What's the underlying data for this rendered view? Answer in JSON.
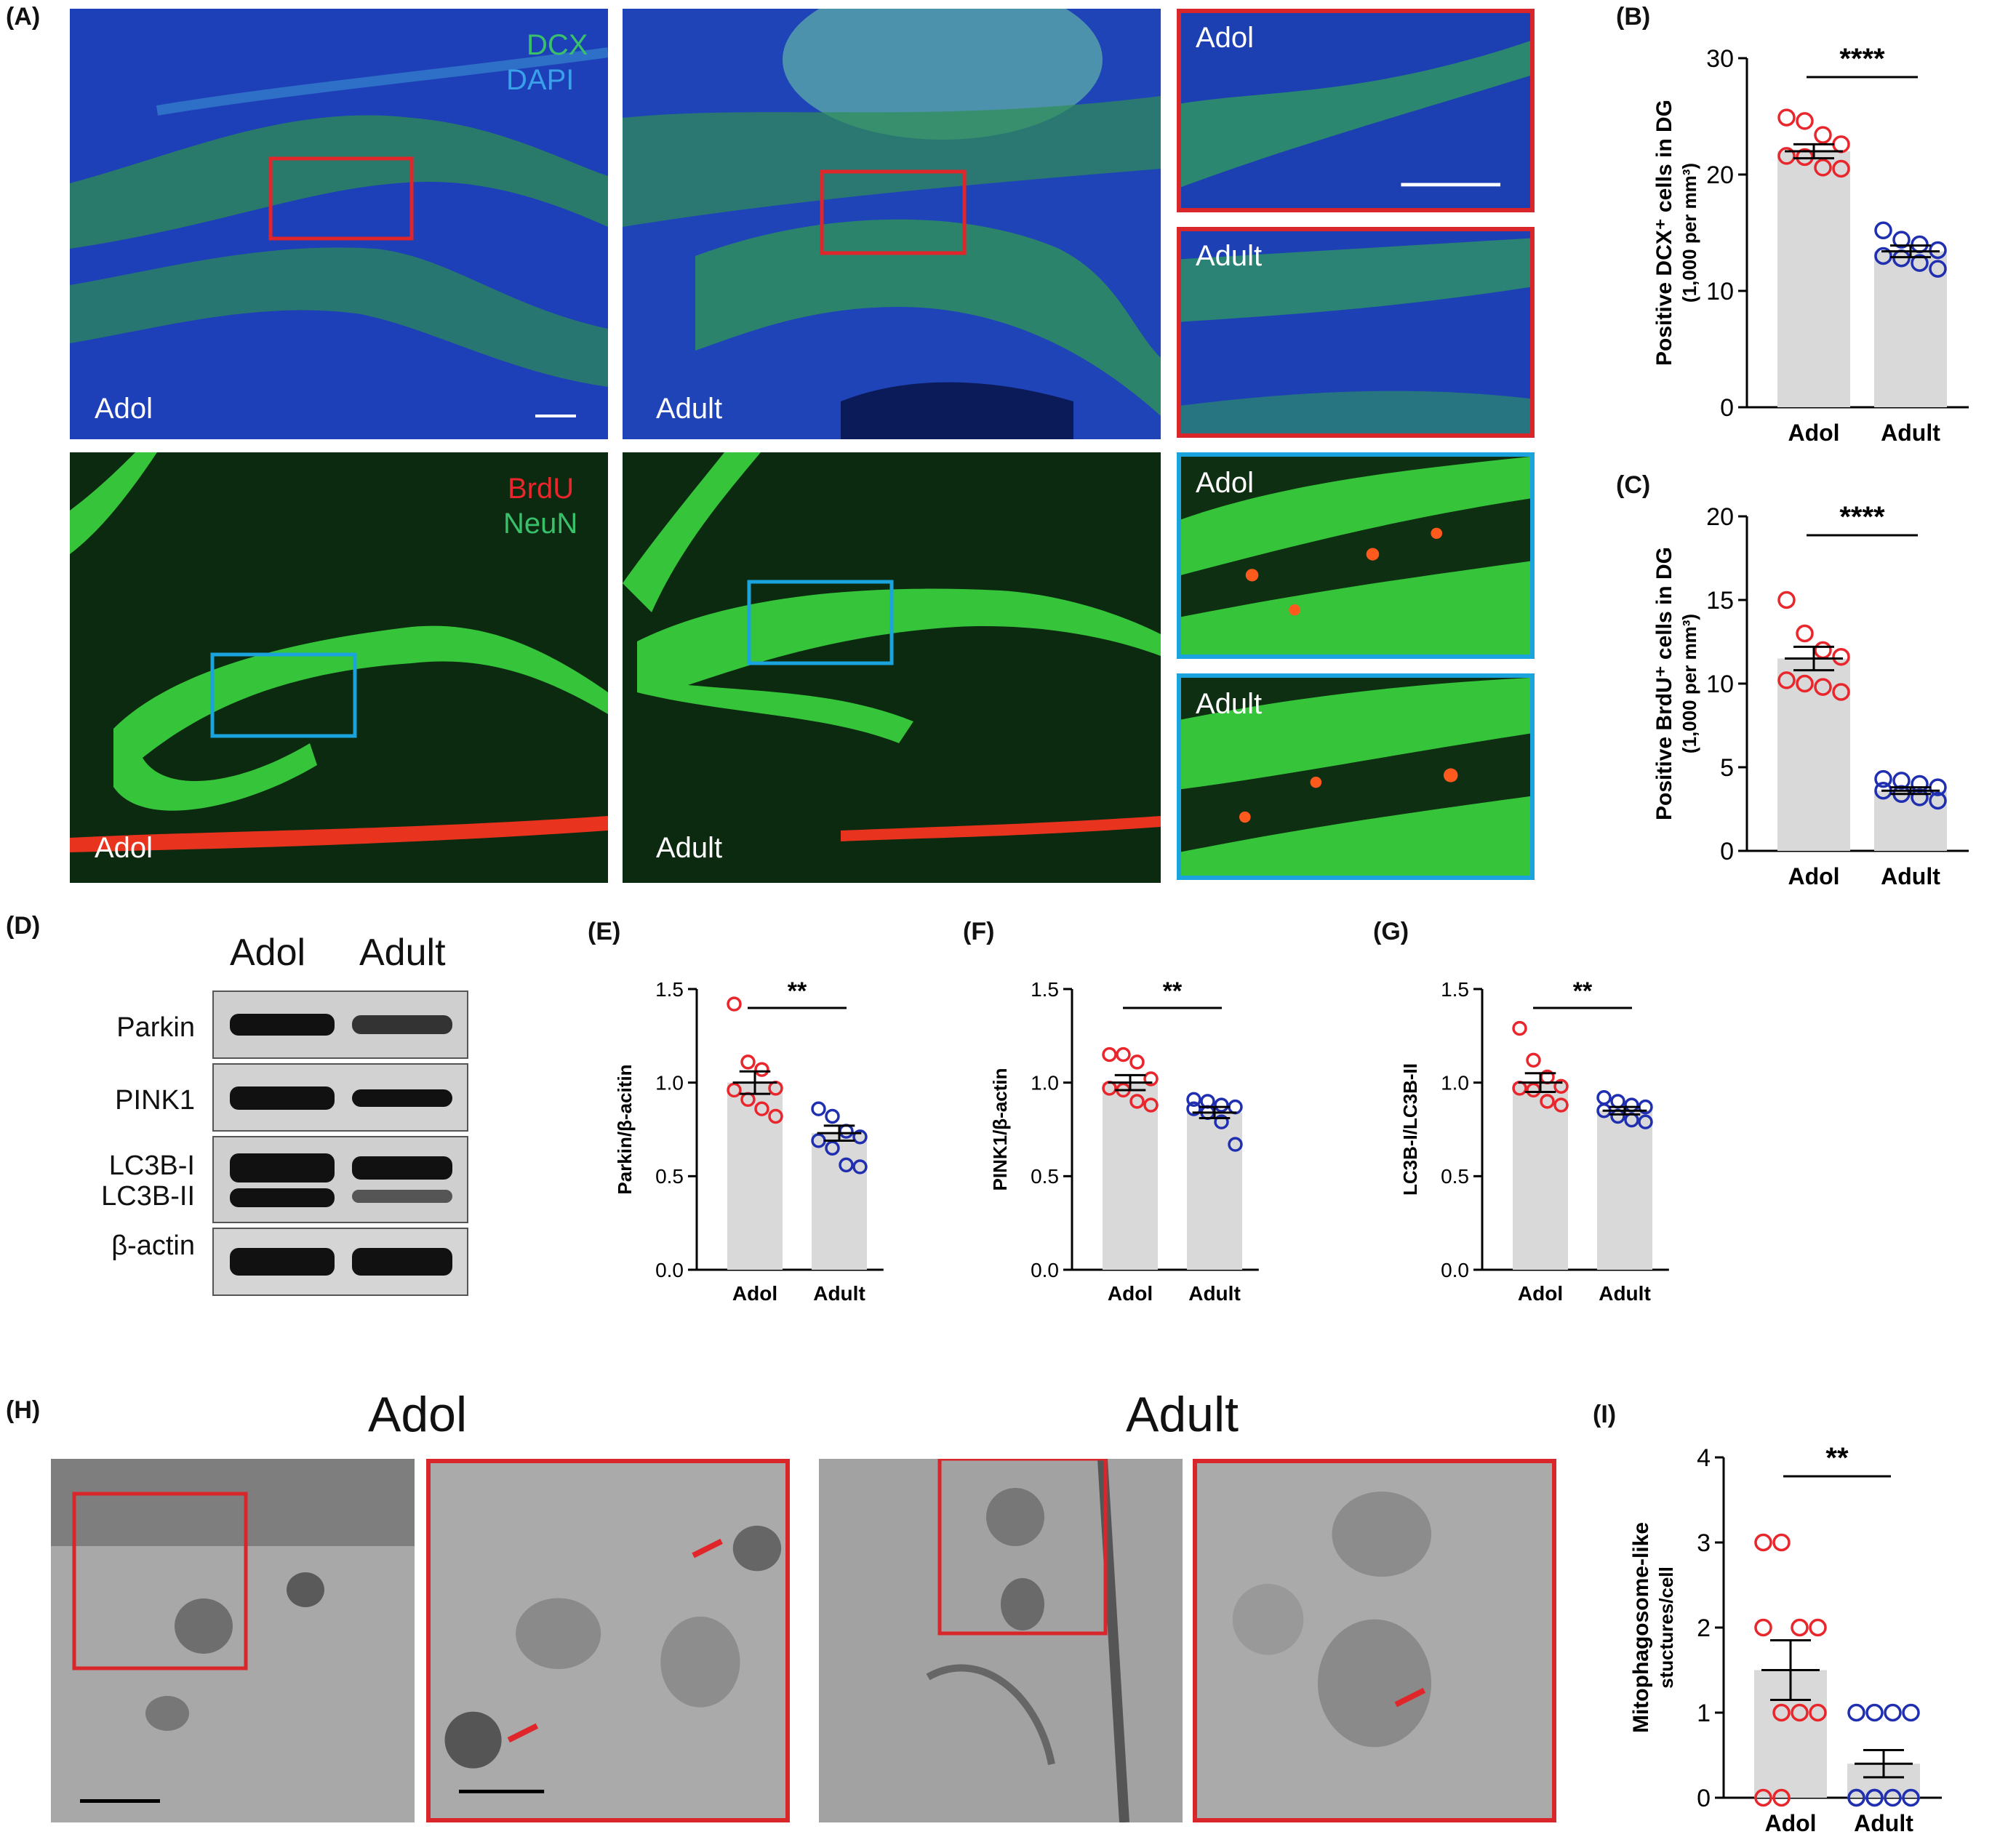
{
  "panel_labels": {
    "A": "(A)",
    "B": "(B)",
    "C": "(C)",
    "D": "(D)",
    "E": "(E)",
    "F": "(F)",
    "G": "(G)",
    "H": "(H)",
    "I": "(I)"
  },
  "panel_a": {
    "top_stain_1": "DCX",
    "top_stain_2": "DAPI",
    "bottom_stain_1": "BrdU",
    "bottom_stain_2": "NeuN",
    "img_top_left": "Adol",
    "img_top_mid": "Adult",
    "img_top_zoom1": "Adol",
    "img_top_zoom2": "Adult",
    "img_bot_left": "Adol",
    "img_bot_mid": "Adult",
    "img_bot_zoom1": "Adol",
    "img_bot_zoom2": "Adult"
  },
  "panel_d": {
    "col_adol": "Adol",
    "col_adult": "Adult",
    "row_parkin": "Parkin",
    "row_pink1": "PINK1",
    "row_lc3b_i": "LC3B-I",
    "row_lc3b_ii": "LC3B-II",
    "row_actin": "β-actin"
  },
  "panel_h": {
    "title_adol": "Adol",
    "title_adult": "Adult"
  },
  "colors": {
    "adol_points": "#e8262b",
    "adult_points": "#1f2fb0",
    "bar": "#d9d9d9",
    "zoom_frame_red": "#d9262b",
    "zoom_frame_blue": "#1aa3dc"
  },
  "chart_data": [
    {
      "id": "B",
      "type": "bar",
      "categories": [
        "Adol",
        "Adult"
      ],
      "values": [
        22.0,
        13.4
      ],
      "sem": [
        0.6,
        0.5
      ],
      "points": [
        [
          24.9,
          24.6,
          23.4,
          22.6,
          21.6,
          21.5,
          20.6,
          20.5
        ],
        [
          15.2,
          14.4,
          14.0,
          13.5,
          13.0,
          12.8,
          12.4,
          11.9
        ]
      ],
      "ylabel": "Positive DCX⁺ cells in DG",
      "ylabel2": "(1,000 per mm³)",
      "ylim": [
        0,
        30
      ],
      "yticks": [
        0,
        10,
        20,
        30
      ],
      "significance": "****"
    },
    {
      "id": "C",
      "type": "bar",
      "categories": [
        "Adol",
        "Adult"
      ],
      "values": [
        11.5,
        3.6
      ],
      "sem": [
        0.7,
        0.2
      ],
      "points": [
        [
          15.0,
          13.0,
          12.0,
          11.6,
          10.2,
          10.0,
          9.8,
          9.5
        ],
        [
          4.3,
          4.2,
          4.0,
          3.8,
          3.6,
          3.4,
          3.2,
          3.0
        ]
      ],
      "ylabel": "Positive BrdU⁺ cells in DG",
      "ylabel2": "(1,000 per mm³)",
      "ylim": [
        0,
        20
      ],
      "yticks": [
        0,
        5,
        10,
        15,
        20
      ],
      "significance": "****"
    },
    {
      "id": "E",
      "type": "bar",
      "categories": [
        "Adol",
        "Adult"
      ],
      "values": [
        1.0,
        0.73
      ],
      "sem": [
        0.06,
        0.04
      ],
      "points": [
        [
          1.42,
          1.11,
          1.07,
          0.97,
          0.96,
          0.91,
          0.86,
          0.82
        ],
        [
          0.86,
          0.82,
          0.74,
          0.71,
          0.69,
          0.65,
          0.56,
          0.55
        ]
      ],
      "ylabel": "Parkin/β-acitin",
      "ylim": [
        0,
        1.5
      ],
      "yticks": [
        "0.0",
        "0.5",
        "1.0",
        "1.5"
      ],
      "significance": "**"
    },
    {
      "id": "F",
      "type": "bar",
      "categories": [
        "Adol",
        "Adult"
      ],
      "values": [
        1.0,
        0.84
      ],
      "sem": [
        0.04,
        0.03
      ],
      "points": [
        [
          1.15,
          1.15,
          1.11,
          1.02,
          0.97,
          0.96,
          0.9,
          0.88
        ],
        [
          0.91,
          0.9,
          0.88,
          0.87,
          0.86,
          0.84,
          0.79,
          0.67
        ]
      ],
      "ylabel": "PINK1/β-actin",
      "ylim": [
        0,
        1.5
      ],
      "yticks": [
        "0.0",
        "0.5",
        "1.0",
        "1.5"
      ],
      "significance": "**"
    },
    {
      "id": "G",
      "type": "bar",
      "categories": [
        "Adol",
        "Adult"
      ],
      "values": [
        1.0,
        0.85
      ],
      "sem": [
        0.05,
        0.02
      ],
      "points": [
        [
          1.29,
          1.12,
          1.03,
          0.98,
          0.97,
          0.96,
          0.9,
          0.88
        ],
        [
          0.92,
          0.9,
          0.88,
          0.87,
          0.85,
          0.82,
          0.8,
          0.79
        ]
      ],
      "ylabel": "LC3B-I/LC3B-II",
      "ylim": [
        0,
        1.5
      ],
      "yticks": [
        "0.0",
        "0.5",
        "1.0",
        "1.5"
      ],
      "significance": "**"
    },
    {
      "id": "I",
      "type": "bar",
      "categories": [
        "Adol",
        "Adult"
      ],
      "values": [
        1.5,
        0.4
      ],
      "sem": [
        0.35,
        0.16
      ],
      "points": [
        [
          3,
          3,
          2,
          2,
          2,
          1,
          1,
          1,
          0,
          0
        ],
        [
          1,
          1,
          1,
          1,
          0,
          0,
          0,
          0,
          0,
          0
        ]
      ],
      "ylabel": "Mitophagosome-like",
      "ylabel2": "stuctures/cell",
      "ylim": [
        0,
        4
      ],
      "yticks": [
        0,
        1,
        2,
        3,
        4
      ],
      "significance": "**"
    }
  ]
}
